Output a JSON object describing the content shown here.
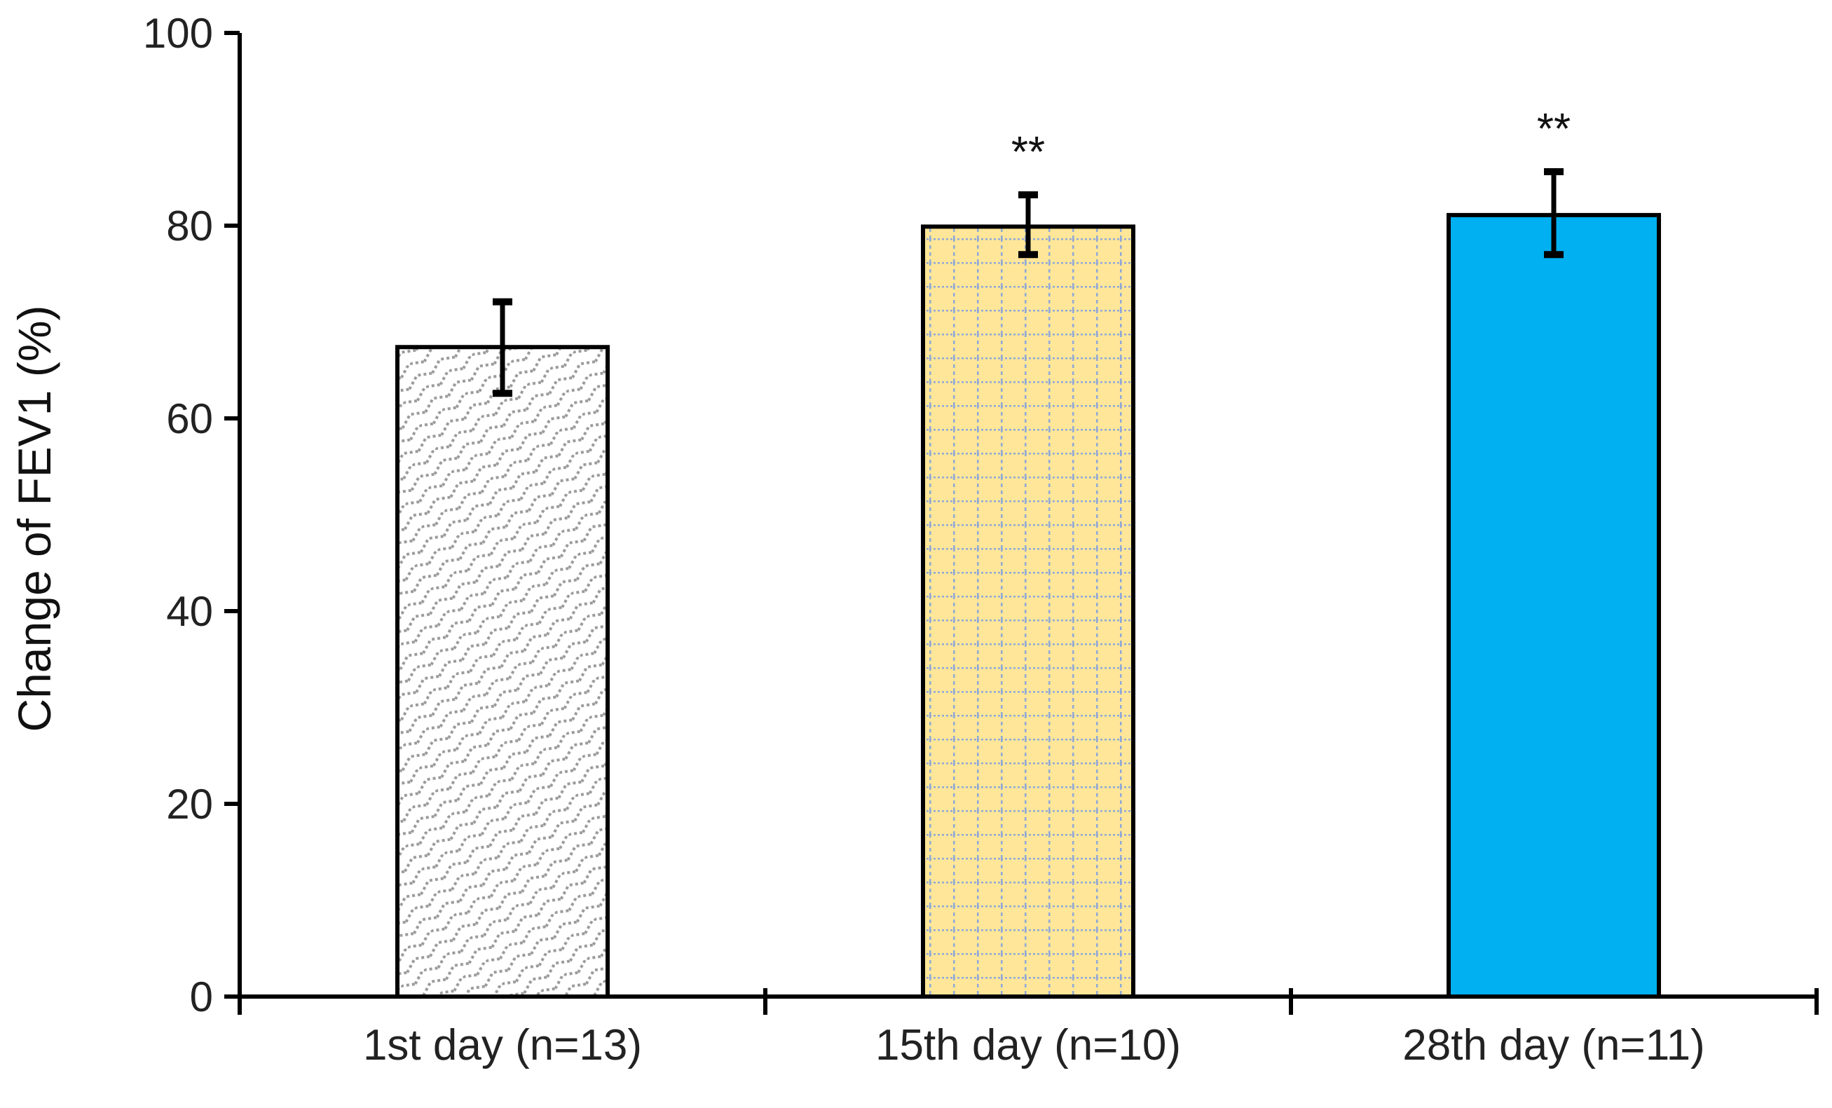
{
  "chart_data": {
    "type": "bar",
    "title": "",
    "xlabel": "",
    "ylabel": "Change of FEV1 (%)",
    "ylim": [
      0,
      100
    ],
    "yticks": [
      0,
      20,
      40,
      60,
      80,
      100
    ],
    "grid": false,
    "categories": [
      "1st day (n=13)",
      "15th day (n=10)",
      "28th day (n=11)"
    ],
    "values": [
      67.4,
      79.9,
      81.1
    ],
    "error_bars": [
      {
        "upper": 72.1,
        "lower": 62.6
      },
      {
        "upper": 83.2,
        "lower": 77.0
      },
      {
        "upper": 85.6,
        "lower": 77.0
      }
    ],
    "annotations": [
      "",
      "**",
      "**"
    ],
    "fills": [
      {
        "pattern": "diagonal-weave",
        "color": "#9a9a9a",
        "background": "#ffffff"
      },
      {
        "pattern": "dotted-grid",
        "color": "#8fa8d8",
        "background": "#ffe699"
      },
      {
        "pattern": "solid",
        "color": "#00b0f0",
        "background": "#00b0f0"
      }
    ]
  }
}
